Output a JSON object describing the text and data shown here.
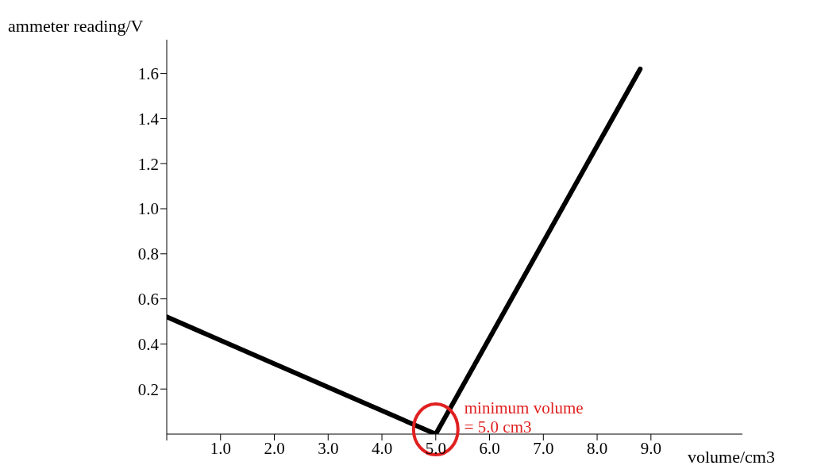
{
  "chart_data": {
    "type": "line",
    "xlabel": "volume/cm3",
    "ylabel": "ammeter reading/V",
    "x": [
      0,
      5.0,
      8.8
    ],
    "series": [
      {
        "color": "#000000",
        "values": [
          0.52,
          0,
          1.62
        ]
      }
    ],
    "xlim": [
      0,
      10.7
    ],
    "ylim": [
      0,
      1.75
    ],
    "xticks": [
      {
        "value": 0,
        "label": null
      },
      {
        "value": 1,
        "label": "1.0"
      },
      {
        "value": 2,
        "label": "2.0"
      },
      {
        "value": 3,
        "label": "3.0"
      },
      {
        "value": 4,
        "label": "4.0"
      },
      {
        "value": 5,
        "label": "5.0"
      },
      {
        "value": 6,
        "label": "6.0"
      },
      {
        "value": 7,
        "label": "7.0"
      },
      {
        "value": 8,
        "label": "8.0"
      },
      {
        "value": 9,
        "label": "9.0"
      }
    ],
    "yticks": [
      {
        "value": 0.2,
        "label": "0.2"
      },
      {
        "value": 0.4,
        "label": "0.4"
      },
      {
        "value": 0.6,
        "label": "0.6"
      },
      {
        "value": 0.8,
        "label": "0.8"
      },
      {
        "value": 1.0,
        "label": "1.0"
      },
      {
        "value": 1.2,
        "label": "1.2"
      },
      {
        "value": 1.4,
        "label": "1.4"
      },
      {
        "value": 1.6,
        "label": "1.6"
      }
    ],
    "annotations": [
      {
        "text": "minimum volume\n= 5.0 cm3",
        "x": 5.0,
        "y": 0
      }
    ],
    "grid": false,
    "legend": false,
    "marker": "none",
    "line_style": "solid"
  }
}
